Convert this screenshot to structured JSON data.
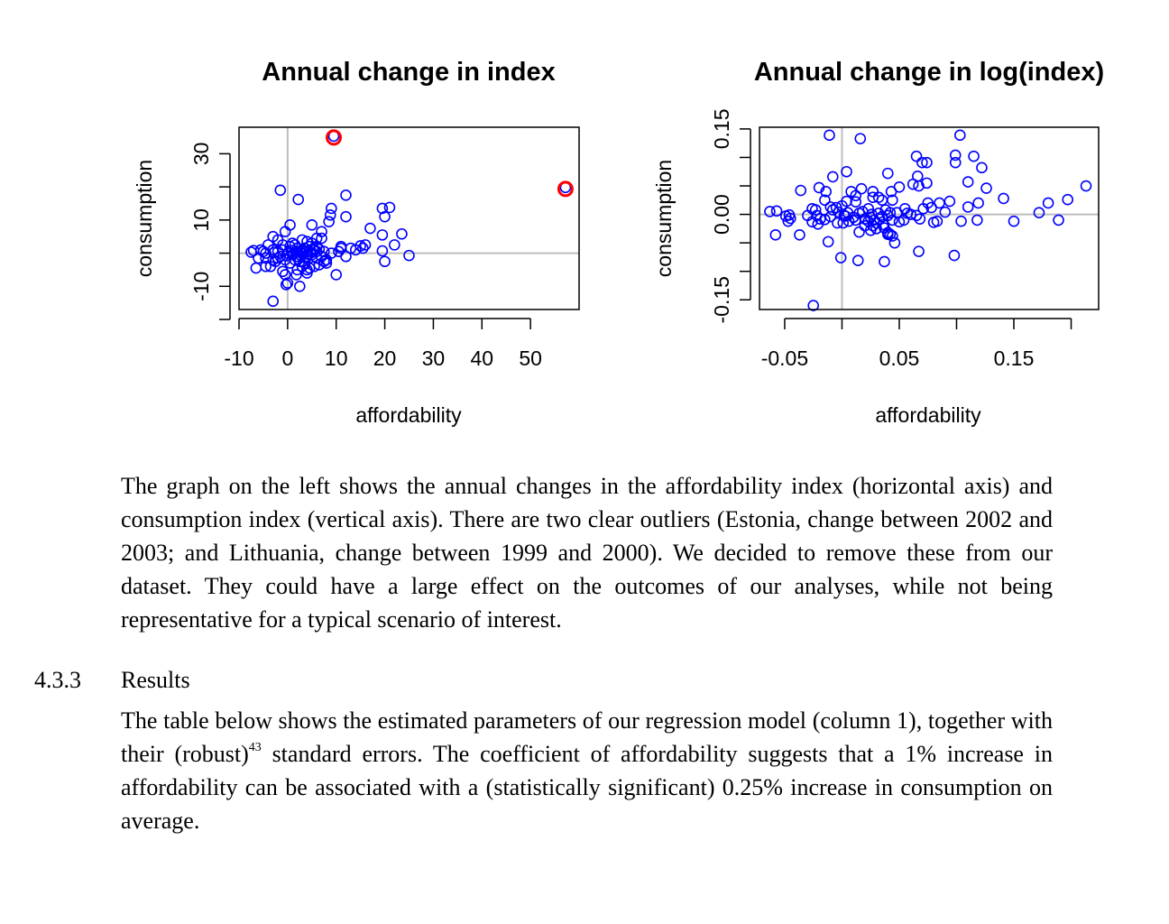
{
  "chart_data": [
    {
      "type": "scatter",
      "title": "Annual change in index",
      "xlabel": "affordability",
      "ylabel": "consumption",
      "xticks": [
        "-10",
        "0",
        "10",
        "20",
        "30",
        "40",
        "50"
      ],
      "xtick_values": [
        -10,
        0,
        10,
        20,
        30,
        40,
        50
      ],
      "yticks": [
        "-10",
        "10",
        "30"
      ],
      "ytick_values": [
        -20,
        -10,
        0,
        10,
        20,
        30
      ],
      "xlim": [
        -10,
        60
      ],
      "ylim": [
        -17,
        38
      ],
      "reference_lines": {
        "x": 0,
        "y": 0
      },
      "marker_color": "#0000ff",
      "highlight_color": "#ff0000",
      "grid": false,
      "points": [
        [
          9.5,
          35.3
        ],
        [
          57.2,
          19.8
        ],
        [
          -1.5,
          19.0
        ],
        [
          2.2,
          16.2
        ],
        [
          12,
          17.5
        ],
        [
          9,
          13.5
        ],
        [
          8.8,
          11.5
        ],
        [
          12,
          11
        ],
        [
          8.5,
          9.5
        ],
        [
          20,
          11
        ],
        [
          19.5,
          13.5
        ],
        [
          21,
          13.8
        ],
        [
          17,
          7.5
        ],
        [
          19.5,
          5.5
        ],
        [
          23.5,
          5.8
        ],
        [
          22,
          2.5
        ],
        [
          19.5,
          0.7
        ],
        [
          20,
          -2.5
        ],
        [
          25,
          -0.7
        ],
        [
          15,
          2.2
        ],
        [
          15.5,
          1.5
        ],
        [
          11,
          1.5
        ],
        [
          13,
          1.5
        ],
        [
          12,
          -1
        ],
        [
          10,
          -6.5
        ],
        [
          7,
          6.5
        ],
        [
          7,
          4.5
        ],
        [
          5,
          8.5
        ],
        [
          0.5,
          8.5
        ],
        [
          -0.5,
          6.5
        ],
        [
          -3,
          5
        ],
        [
          -4,
          2.5
        ],
        [
          -2,
          4
        ],
        [
          1,
          3
        ],
        [
          3,
          4
        ],
        [
          4,
          3.5
        ],
        [
          5,
          3
        ],
        [
          6,
          2
        ],
        [
          2,
          1.5
        ],
        [
          3,
          1
        ],
        [
          4,
          0.5
        ],
        [
          5,
          0.2
        ],
        [
          6,
          0.5
        ],
        [
          7.5,
          0.5
        ],
        [
          -7.5,
          0.3
        ],
        [
          -7,
          0.8
        ],
        [
          -5.5,
          1
        ],
        [
          -6,
          -1.5
        ],
        [
          -4.5,
          0
        ],
        [
          -3,
          1
        ],
        [
          -2,
          0.5
        ],
        [
          -1,
          1
        ],
        [
          0,
          0
        ],
        [
          1,
          -0.5
        ],
        [
          2,
          -1
        ],
        [
          3,
          0
        ],
        [
          4,
          -1
        ],
        [
          5,
          -0.5
        ],
        [
          6,
          -1.5
        ],
        [
          7,
          -1
        ],
        [
          8,
          -2
        ],
        [
          9,
          0
        ],
        [
          1.5,
          -2
        ],
        [
          2.5,
          -2.5
        ],
        [
          3.5,
          -3
        ],
        [
          4.5,
          -4.5
        ],
        [
          5.5,
          -4
        ],
        [
          6.5,
          -3.5
        ],
        [
          0.5,
          -3
        ],
        [
          -0.5,
          -2
        ],
        [
          -1.5,
          -1
        ],
        [
          -2.5,
          -2.5
        ],
        [
          -3.5,
          -4
        ],
        [
          -4.5,
          -4
        ],
        [
          -6.5,
          -4.5
        ],
        [
          -3,
          -2
        ],
        [
          -1,
          -5.5
        ],
        [
          0,
          -9
        ],
        [
          -0.5,
          -6.5
        ],
        [
          -4.5,
          -1.5
        ],
        [
          -2,
          -1.5
        ],
        [
          -1,
          2.5
        ],
        [
          0.5,
          2
        ],
        [
          1.5,
          2.5
        ],
        [
          2.5,
          0.5
        ],
        [
          3.5,
          1.5
        ],
        [
          4.5,
          2
        ],
        [
          5.5,
          1
        ],
        [
          6.5,
          1.2
        ],
        [
          7.5,
          -2.5
        ],
        [
          8,
          -3
        ],
        [
          2,
          -5
        ],
        [
          3,
          -4
        ],
        [
          4,
          -6
        ],
        [
          2.5,
          -10
        ],
        [
          -3,
          -14.5
        ],
        [
          -0.3,
          -9.5
        ],
        [
          1.8,
          -6.5
        ],
        [
          4,
          -5
        ],
        [
          0.8,
          0.8
        ],
        [
          1.2,
          -0.2
        ],
        [
          1.8,
          0.3
        ],
        [
          2.8,
          -0.8
        ],
        [
          3.2,
          0.6
        ],
        [
          4.2,
          -0.3
        ],
        [
          5.2,
          1.3
        ],
        [
          3.8,
          -1.5
        ],
        [
          2.2,
          -1.8
        ],
        [
          -0.2,
          -0.8
        ],
        [
          -2.8,
          0.2
        ],
        [
          -5,
          0.5
        ],
        [
          6,
          4.5
        ],
        [
          10.5,
          0.5
        ],
        [
          11,
          2
        ],
        [
          14,
          1
        ],
        [
          16,
          2.5
        ]
      ]
    },
    {
      "type": "scatter",
      "title": "Annual change in log(index)",
      "xlabel": "affordability",
      "ylabel": "consumption",
      "xticks": [
        "-0.05",
        "0.05",
        "0.15"
      ],
      "xtick_values": [
        -0.05,
        0.0,
        0.05,
        0.1,
        0.15,
        0.2
      ],
      "yticks": [
        "-0.15",
        "0.00",
        "0.15"
      ],
      "ytick_values": [
        -0.15,
        -0.1,
        -0.05,
        0.0,
        0.05,
        0.1,
        0.15
      ],
      "xlim": [
        -0.072,
        0.224
      ],
      "ylim": [
        -0.167,
        0.153
      ],
      "reference_lines": {
        "x": 0,
        "y": 0
      },
      "marker_color": "#0000ff",
      "grid": false,
      "points": [
        [
          -0.011,
          0.139
        ],
        [
          0.016,
          0.133
        ],
        [
          0.103,
          0.139
        ],
        [
          0.065,
          0.102
        ],
        [
          0.07,
          0.091
        ],
        [
          0.074,
          0.091
        ],
        [
          0.099,
          0.104
        ],
        [
          0.099,
          0.091
        ],
        [
          0.115,
          0.102
        ],
        [
          0.122,
          0.082
        ],
        [
          0.004,
          0.075
        ],
        [
          0.04,
          0.072
        ],
        [
          -0.008,
          0.066
        ],
        [
          0.066,
          0.067
        ],
        [
          0.074,
          0.055
        ],
        [
          0.062,
          0.053
        ],
        [
          0.067,
          0.05
        ],
        [
          0.11,
          0.057
        ],
        [
          0.126,
          0.046
        ],
        [
          0.05,
          0.048
        ],
        [
          -0.036,
          0.042
        ],
        [
          -0.02,
          0.047
        ],
        [
          -0.014,
          0.04
        ],
        [
          0.017,
          0.045
        ],
        [
          0.008,
          0.04
        ],
        [
          -0.023,
          0.008
        ],
        [
          -0.015,
          0.025
        ],
        [
          -0.01,
          0.013
        ],
        [
          0.0,
          0.015
        ],
        [
          0.012,
          0.033
        ],
        [
          0.027,
          0.03
        ],
        [
          0.027,
          0.04
        ],
        [
          0.032,
          0.03
        ],
        [
          0.043,
          0.04
        ],
        [
          0.035,
          0.025
        ],
        [
          0.044,
          0.025
        ],
        [
          0.094,
          0.023
        ],
        [
          0.11,
          0.013
        ],
        [
          0.085,
          0.02
        ],
        [
          0.075,
          0.02
        ],
        [
          0.119,
          0.02
        ],
        [
          0.141,
          0.028
        ],
        [
          0.18,
          0.02
        ],
        [
          0.197,
          0.026
        ],
        [
          0.213,
          0.05
        ],
        [
          -0.063,
          0.005
        ],
        [
          -0.057,
          0.006
        ],
        [
          -0.049,
          -0.003
        ],
        [
          -0.047,
          -0.012
        ],
        [
          -0.045,
          -0.007
        ],
        [
          -0.046,
          -0.001
        ],
        [
          -0.026,
          0.01
        ],
        [
          -0.03,
          -0.002
        ],
        [
          -0.022,
          -0.002
        ],
        [
          -0.026,
          -0.013
        ],
        [
          -0.021,
          -0.017
        ],
        [
          -0.019,
          -0.008
        ],
        [
          -0.015,
          -0.009
        ],
        [
          -0.01,
          -0.004
        ],
        [
          -0.008,
          0.008
        ],
        [
          -0.005,
          0.012
        ],
        [
          -0.003,
          0.004
        ],
        [
          0.002,
          -0.002
        ],
        [
          0.005,
          0.003
        ],
        [
          0.01,
          -0.005
        ],
        [
          0.012,
          -0.01
        ],
        [
          0.015,
          0.002
        ],
        [
          0.018,
          0.005
        ],
        [
          0.02,
          -0.008
        ],
        [
          0.023,
          0.01
        ],
        [
          0.025,
          -0.005
        ],
        [
          0.026,
          0.0
        ],
        [
          0.028,
          -0.01
        ],
        [
          0.03,
          -0.015
        ],
        [
          0.032,
          0.002
        ],
        [
          0.033,
          -0.008
        ],
        [
          0.035,
          -0.004
        ],
        [
          0.036,
          -0.018
        ],
        [
          0.038,
          0.008
        ],
        [
          0.04,
          -0.002
        ],
        [
          0.042,
          0.003
        ],
        [
          0.044,
          -0.01
        ],
        [
          0.023,
          -0.012
        ],
        [
          0.027,
          -0.02
        ],
        [
          0.03,
          -0.025
        ],
        [
          0.025,
          -0.028
        ],
        [
          0.037,
          -0.024
        ],
        [
          0.04,
          -0.032
        ],
        [
          0.042,
          -0.035
        ],
        [
          0.05,
          -0.013
        ],
        [
          0.054,
          -0.01
        ],
        [
          0.057,
          0.002
        ],
        [
          0.065,
          -0.002
        ],
        [
          0.068,
          -0.008
        ],
        [
          0.071,
          0.01
        ],
        [
          0.078,
          0.012
        ],
        [
          0.08,
          -0.014
        ],
        [
          0.083,
          -0.012
        ],
        [
          0.09,
          0.004
        ],
        [
          0.104,
          -0.012
        ],
        [
          0.118,
          -0.01
        ],
        [
          0.15,
          -0.012
        ],
        [
          0.172,
          0.003
        ],
        [
          0.189,
          -0.01
        ],
        [
          -0.058,
          -0.036
        ],
        [
          -0.037,
          -0.036
        ],
        [
          -0.012,
          -0.048
        ],
        [
          -0.001,
          -0.076
        ],
        [
          0.014,
          -0.081
        ],
        [
          0.037,
          -0.083
        ],
        [
          0.067,
          -0.065
        ],
        [
          0.046,
          -0.05
        ],
        [
          0.044,
          -0.038
        ],
        [
          0.04,
          -0.035
        ],
        [
          0.098,
          -0.072
        ],
        [
          0.015,
          -0.031
        ],
        [
          -0.025,
          -0.16
        ],
        [
          0.001,
          -0.015
        ],
        [
          0.006,
          -0.012
        ],
        [
          -0.004,
          -0.015
        ],
        [
          0.02,
          -0.02
        ],
        [
          0.004,
          0.023
        ],
        [
          0.012,
          0.022
        ],
        [
          0.055,
          0.01
        ],
        [
          0.06,
          0.0
        ],
        [
          0.003,
          -0.003
        ],
        [
          0.048,
          0.003
        ]
      ]
    }
  ],
  "highlighted_outliers": [
    [
      9.5,
      35.3
    ],
    [
      57.2,
      19.8
    ]
  ],
  "text": {
    "para1": "The graph on the left shows the annual changes in the affordability index (horizontal axis) and consumption index (vertical axis). There are two clear outliers (Estonia, change between 2002 and 2003; and Lithuania, change between 1999 and 2000). We decided to remove these from our dataset. They could have a large effect on the outcomes of our analyses, while not being representative for a typical scenario of interest.",
    "section_number": "4.3.3",
    "section_title": "Results",
    "para2_before_sup": "The table below shows the estimated parameters of our regression model (column 1), together with their (robust)",
    "para2_footnote": "43",
    "para2_after_sup": " standard errors. The coefficient of affordability suggests that a 1% increase in affordability can be associated with a (statistically significant) 0.25% increase in consumption on average."
  }
}
